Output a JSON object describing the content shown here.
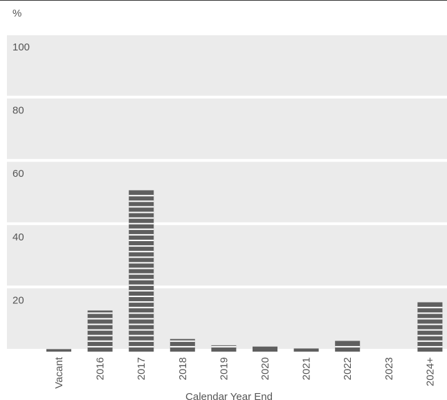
{
  "chart_data": {
    "type": "bar",
    "unit_label": "%",
    "xlabel": "Calendar Year End",
    "ylabel": "",
    "ylim": [
      0,
      100
    ],
    "yticks": [
      20,
      40,
      60,
      80,
      100
    ],
    "categories": [
      "Vacant",
      "2016",
      "2017",
      "2018",
      "2019",
      "2020",
      "2021",
      "2022",
      "2023",
      "2024+"
    ],
    "values": [
      0.8,
      13.0,
      51.0,
      4.0,
      2.0,
      1.6,
      1.0,
      3.4,
      0,
      15.6
    ],
    "colors": {
      "bar": "#5f5f5f",
      "band": "#ebebeb",
      "text": "#555555"
    },
    "grid": true,
    "legend": "none"
  }
}
